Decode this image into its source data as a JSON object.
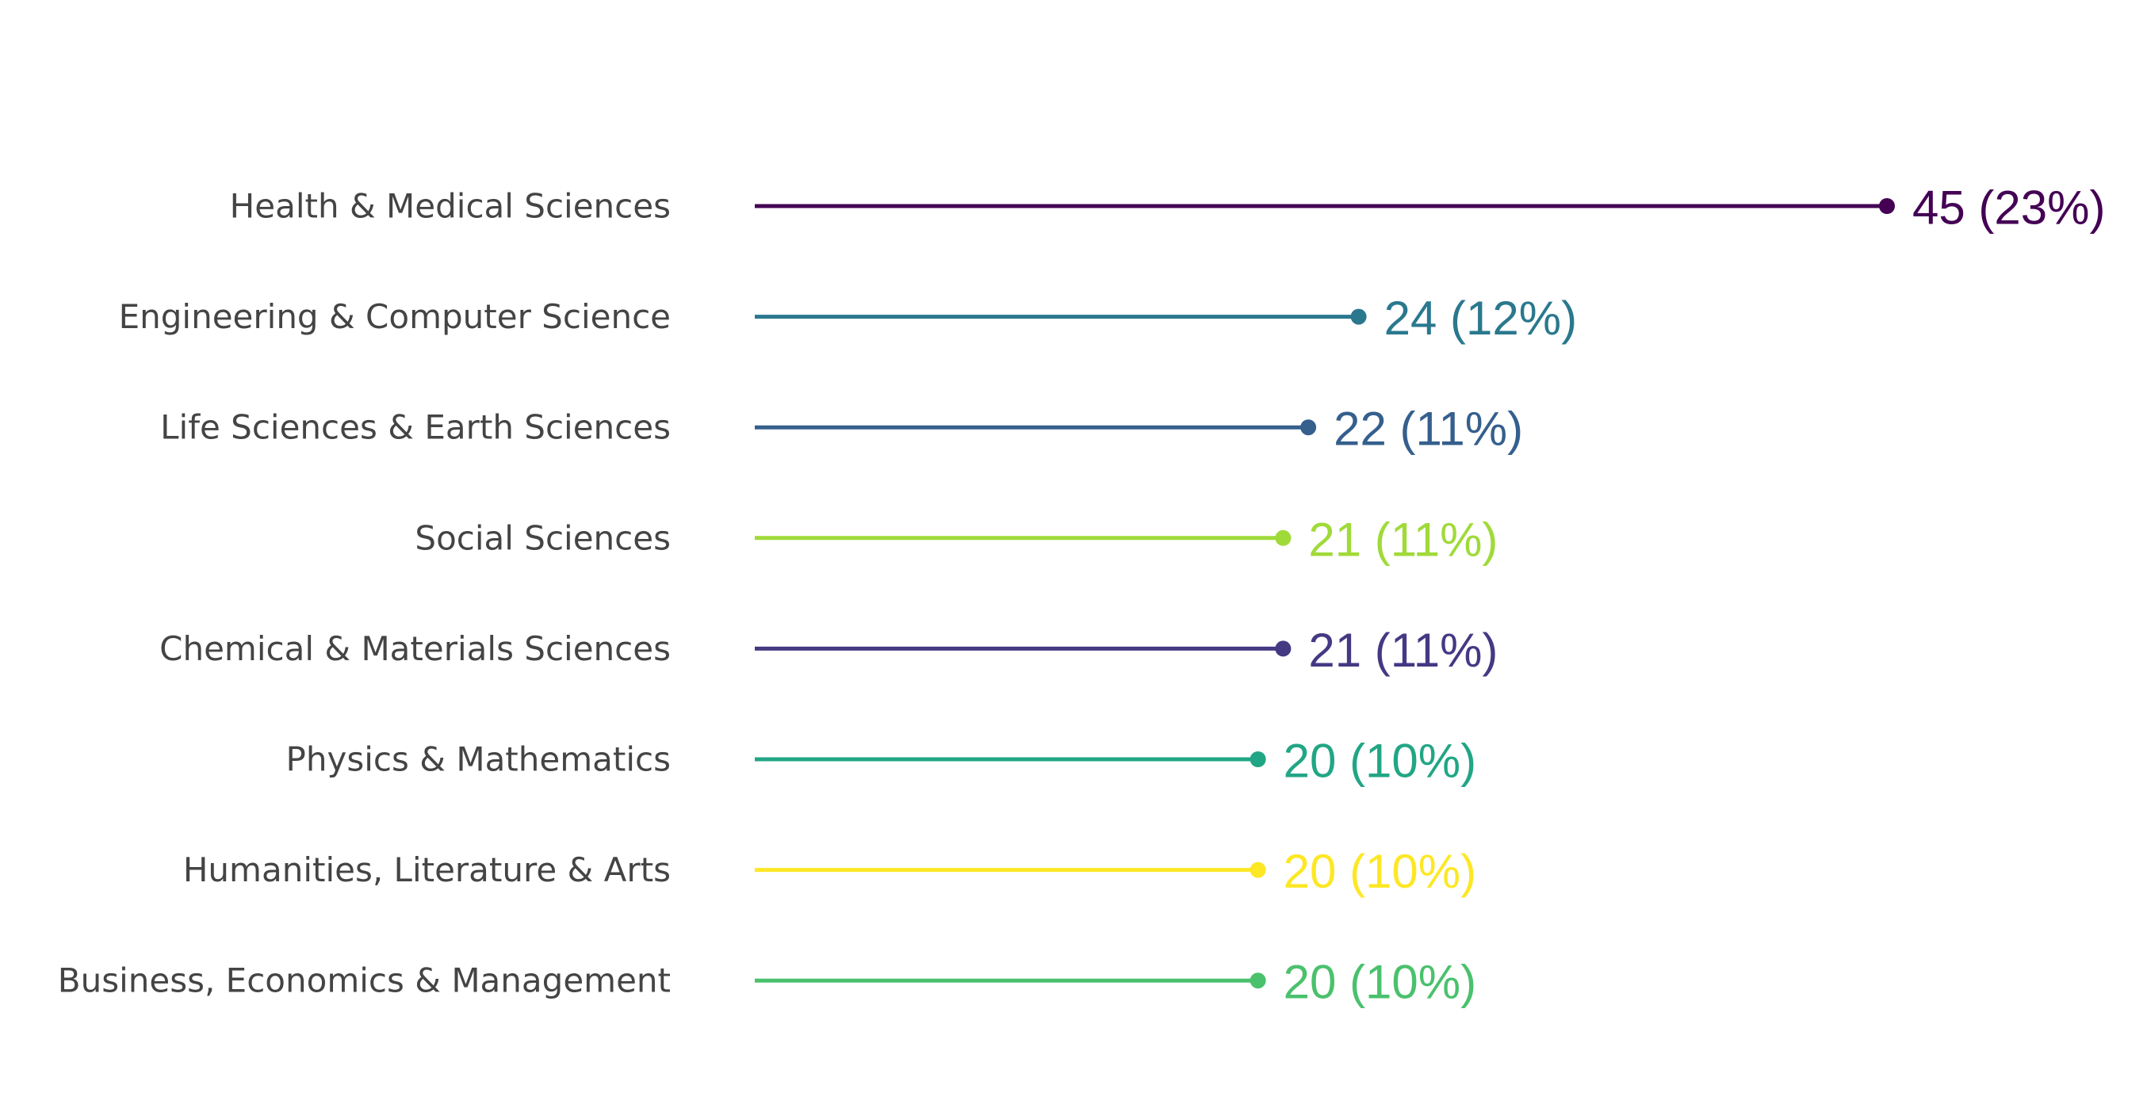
{
  "chart_data": {
    "type": "lollipop",
    "title": "",
    "xlabel": "",
    "ylabel": "",
    "xlim": [
      0,
      45
    ],
    "grid": false,
    "legend": "none",
    "categories": [
      "Health & Medical Sciences",
      "Engineering & Computer Science",
      "Life Sciences & Earth Sciences",
      "Social Sciences",
      "Chemical & Materials Sciences",
      "Physics & Mathematics",
      "Humanities, Literature & Arts",
      "Business, Economics & Management"
    ],
    "values": [
      45,
      24,
      22,
      21,
      21,
      20,
      20,
      20
    ],
    "value_labels": [
      "45 (23%)",
      "24 (12%)",
      "22 (11%)",
      "21 (11%)",
      "21 (11%)",
      "20 (10%)",
      "20 (10%)",
      "20 (10%)"
    ],
    "colors": [
      "#440154",
      "#2a788e",
      "#355f8d",
      "#a0da39",
      "#443983",
      "#21a685",
      "#fde725",
      "#4ac16d"
    ]
  }
}
